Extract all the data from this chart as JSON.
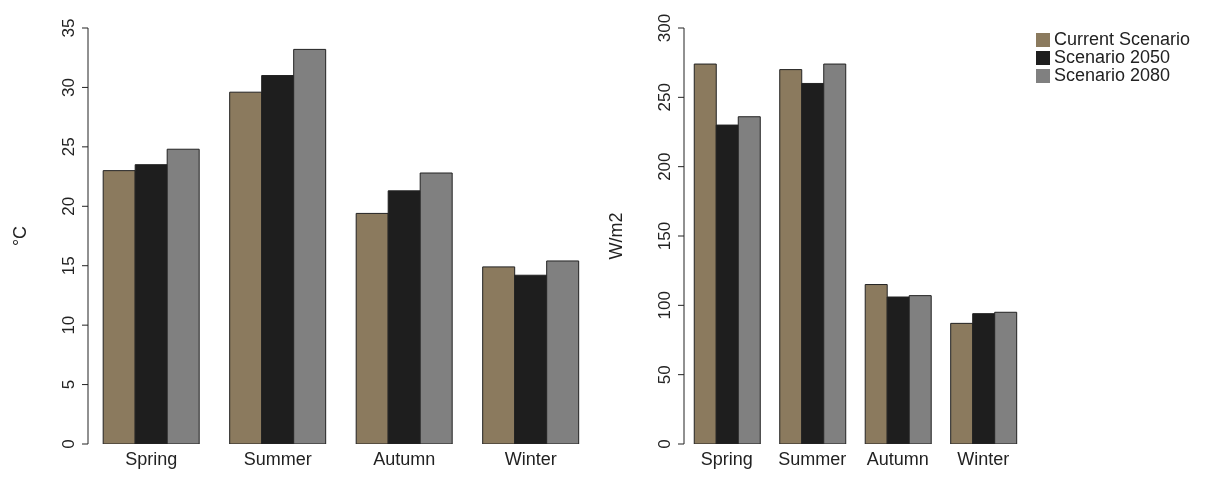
{
  "chart_data": [
    {
      "type": "bar",
      "ylabel": "°C",
      "categories": [
        "Spring",
        "Summer",
        "Autumn",
        "Winter"
      ],
      "series": [
        {
          "color": "#8b7a5e",
          "values": [
            23.0,
            29.6,
            19.4,
            14.9
          ]
        },
        {
          "color": "#1e1e1e",
          "values": [
            23.5,
            31.0,
            21.3,
            14.2
          ]
        },
        {
          "color": "#808080",
          "values": [
            24.8,
            33.2,
            22.8,
            15.4
          ]
        }
      ],
      "ylim": [
        0,
        35
      ],
      "yticks": [
        0,
        5,
        10,
        15,
        20,
        25,
        30,
        35
      ],
      "grid": false,
      "legend": false
    },
    {
      "type": "bar",
      "ylabel": "W/m2",
      "categories": [
        "Spring",
        "Summer",
        "Autumn",
        "Winter"
      ],
      "series": [
        {
          "name": "Current Scenario",
          "color": "#8b7a5e",
          "values": [
            274,
            270,
            115,
            87
          ]
        },
        {
          "name": "Scenario 2050",
          "color": "#1e1e1e",
          "values": [
            230,
            260,
            106,
            94
          ]
        },
        {
          "name": "Scenario 2080",
          "color": "#808080",
          "values": [
            236,
            274,
            107,
            95
          ]
        }
      ],
      "ylim": [
        0,
        300
      ],
      "yticks": [
        0,
        50,
        100,
        150,
        200,
        250,
        300
      ],
      "grid": false,
      "legend": "top right"
    }
  ]
}
